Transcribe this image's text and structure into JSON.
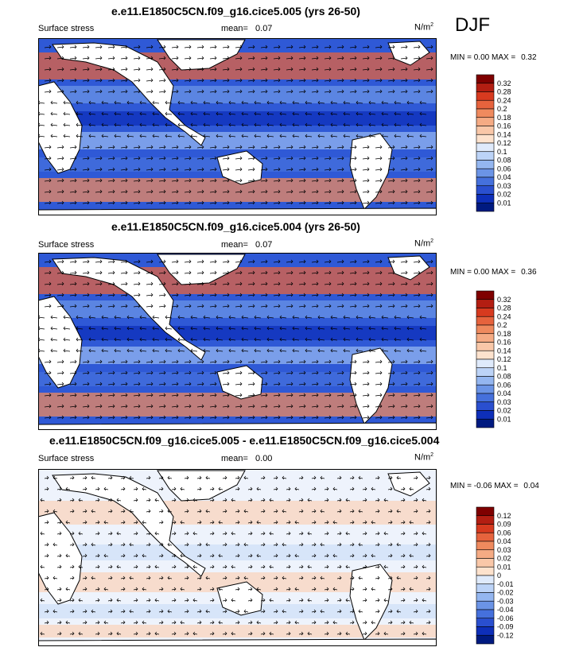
{
  "season": "DJF",
  "panels": [
    {
      "title": "e.e11.E1850C5CN.f09_g16.cice5.005 (yrs 26-50)",
      "variable": "Surface stress",
      "mean_label": "mean=",
      "mean_value": "0.07",
      "units_base": "N/m",
      "units_exp": "2",
      "min_label": "MIN =",
      "min_value": "0.00",
      "max_label": "MAX =",
      "max_value": "0.32"
    },
    {
      "title": "e.e11.E1850C5CN.f09_g16.cice5.004 (yrs 26-50)",
      "variable": "Surface stress",
      "mean_label": "mean=",
      "mean_value": "0.07",
      "units_base": "N/m",
      "units_exp": "2",
      "min_label": "MIN =",
      "min_value": "0.00",
      "max_label": "MAX =",
      "max_value": "0.36"
    },
    {
      "title": "e.e11.E1850C5CN.f09_g16.cice5.005 - e.e11.E1850C5CN.f09_g16.cice5.004",
      "variable": "Surface stress",
      "mean_label": "mean=",
      "mean_value": "0.00",
      "units_base": "N/m",
      "units_exp": "2",
      "min_label": "MIN =",
      "min_value": "-0.06",
      "max_label": "MAX =",
      "max_value": "0.04"
    }
  ],
  "chart_data": [
    {
      "type": "heatmap",
      "title": "e.e11.E1850C5CN.f09_g16.cice5.005 (yrs 26-50)",
      "variable": "Surface stress",
      "units": "N/m2",
      "mean": 0.07,
      "min": 0.0,
      "max": 0.32,
      "colorbar_levels": [
        "0.32",
        "0.28",
        "0.24",
        "0.2",
        "0.18",
        "0.16",
        "0.14",
        "0.12",
        "0.1",
        "0.08",
        "0.06",
        "0.04",
        "0.03",
        "0.02",
        "0.01"
      ],
      "colorbar_colors": [
        "#7f0000",
        "#b31e12",
        "#d73a1f",
        "#e6633d",
        "#ef8a5e",
        "#f5ab84",
        "#f9c7a8",
        "#fde2cd",
        "#dfeafb",
        "#bcd3f7",
        "#94b6f0",
        "#6b94e6",
        "#4570dc",
        "#2a4fcf",
        "#0e2fb9",
        "#001a80"
      ],
      "vectors": true
    },
    {
      "type": "heatmap",
      "title": "e.e11.E1850C5CN.f09_g16.cice5.004 (yrs 26-50)",
      "variable": "Surface stress",
      "units": "N/m2",
      "mean": 0.07,
      "min": 0.0,
      "max": 0.36,
      "colorbar_levels": [
        "0.32",
        "0.28",
        "0.24",
        "0.2",
        "0.18",
        "0.16",
        "0.14",
        "0.12",
        "0.1",
        "0.08",
        "0.06",
        "0.04",
        "0.03",
        "0.02",
        "0.01"
      ],
      "colorbar_colors": [
        "#7f0000",
        "#b31e12",
        "#d73a1f",
        "#e6633d",
        "#ef8a5e",
        "#f5ab84",
        "#f9c7a8",
        "#fde2cd",
        "#dfeafb",
        "#bcd3f7",
        "#94b6f0",
        "#6b94e6",
        "#4570dc",
        "#2a4fcf",
        "#0e2fb9",
        "#001a80"
      ],
      "vectors": true
    },
    {
      "type": "heatmap",
      "title": "e.e11.E1850C5CN.f09_g16.cice5.005 - e.e11.E1850C5CN.f09_g16.cice5.004",
      "variable": "Surface stress",
      "units": "N/m2",
      "mean": 0.0,
      "min": -0.06,
      "max": 0.04,
      "colorbar_levels": [
        "0.12",
        "0.09",
        "0.06",
        "0.04",
        "0.03",
        "0.02",
        "0.01",
        "0",
        "-0.01",
        "-0.02",
        "-0.03",
        "-0.04",
        "-0.06",
        "-0.09",
        "-0.12"
      ],
      "colorbar_colors": [
        "#7f0000",
        "#b31e12",
        "#d73a1f",
        "#e6633d",
        "#ef8a5e",
        "#f5ab84",
        "#f9c7a8",
        "#fde2cd",
        "#dfeafb",
        "#bcd3f7",
        "#94b6f0",
        "#6b94e6",
        "#4570dc",
        "#2a4fcf",
        "#0e2fb9",
        "#001a80"
      ],
      "vectors": true
    }
  ]
}
